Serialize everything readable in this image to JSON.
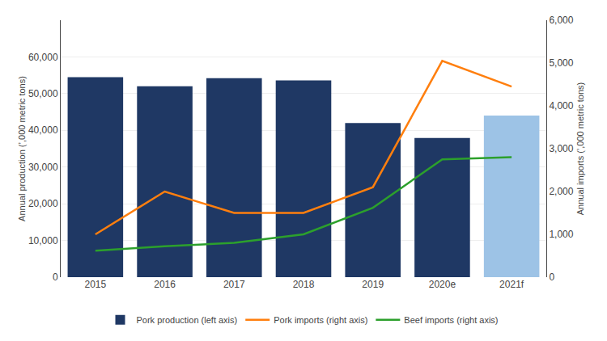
{
  "chart_data": {
    "type": "bar",
    "categories": [
      "2015",
      "2016",
      "2017",
      "2018",
      "2019",
      "2020e",
      "2021f"
    ],
    "series": [
      {
        "name": "Pork production (left axis)",
        "type": "bar",
        "colors": [
          "#1f3864",
          "#1f3864",
          "#1f3864",
          "#1f3864",
          "#1f3864",
          "#1f3864",
          "#9dc3e6"
        ],
        "values": [
          54500,
          52000,
          54200,
          53600,
          42000,
          37900,
          44000
        ]
      },
      {
        "name": "Pork imports (right axis)",
        "type": "line",
        "axis": "y2",
        "values": [
          1000,
          2000,
          1500,
          1500,
          2100,
          5050,
          4450
        ]
      },
      {
        "name": "Beef imports (right axis)",
        "type": "line",
        "axis": "y2",
        "values": [
          620,
          720,
          800,
          1000,
          1620,
          2750,
          2800
        ]
      }
    ],
    "ylabel": "Annual production (’,000 metric tons)",
    "y2label": "Annual imports (’,000 metric tons)",
    "ylim": [
      0,
      70000
    ],
    "yticks": [
      0,
      {
        "value": 10000,
        "label": "10,000"
      },
      {
        "value": 20000,
        "label": "20,000"
      },
      {
        "value": 30000,
        "label": "30,000"
      },
      {
        "value": 40000,
        "label": "40,000"
      },
      {
        "value": 50000,
        "label": "50,000"
      },
      {
        "value": 60000,
        "label": "60,000"
      }
    ],
    "y2lim": [
      0,
      6000
    ],
    "y2ticks": [
      0,
      {
        "value": 1000,
        "label": "1,000"
      },
      {
        "value": 2000,
        "label": "2,000"
      },
      {
        "value": 3000,
        "label": "3,000"
      },
      {
        "value": 4000,
        "label": "4,000"
      },
      {
        "value": 5000,
        "label": "5,000"
      },
      {
        "value": 6000,
        "label": "6,000"
      }
    ],
    "grid": true,
    "legend": "bottom"
  }
}
